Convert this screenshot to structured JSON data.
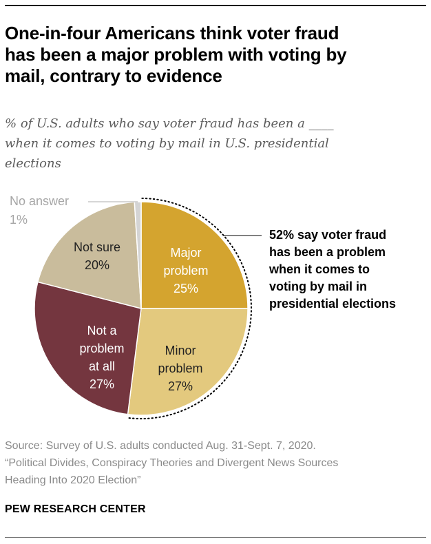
{
  "title": "One-in-four Americans think voter fraud\nhas been a major problem with voting by\nmail, contrary to evidence",
  "subtitle": "% of U.S. adults who say voter fraud has been a ____\nwhen it comes to voting by mail in U.S. presidential\nelections",
  "callout": "52% say voter fraud\nhas been a problem\nwhen it comes to\nvoting by mail in\npresidential elections",
  "source": "Source: Survey of U.S. adults conducted Aug. 31-Sept. 7, 2020.\n“Political Divides, Conspiracy Theories and Divergent News Sources\nHeading Into 2020 Election”",
  "brand": "PEW RESEARCH CENTER",
  "chart_data": {
    "type": "pie",
    "unit": "%",
    "slices": [
      {
        "label": "Major problem",
        "label_lines": [
          "Major",
          "problem",
          "25%"
        ],
        "value": 25,
        "color": "#d4a42f",
        "text_color": "#ffffff"
      },
      {
        "label": "Minor problem",
        "label_lines": [
          "Minor",
          "problem",
          "27%"
        ],
        "value": 27,
        "color": "#e3c97e",
        "text_color": "#222222"
      },
      {
        "label": "Not a problem at all",
        "label_lines": [
          "Not a",
          "problem",
          "at all",
          "27%"
        ],
        "value": 27,
        "color": "#74363f",
        "text_color": "#ffffff"
      },
      {
        "label": "Not sure",
        "label_lines": [
          "Not sure",
          "20%"
        ],
        "value": 20,
        "color": "#c9bc9c",
        "text_color": "#222222"
      },
      {
        "label": "No answer",
        "label_lines": [
          "No answer",
          "1%"
        ],
        "value": 1,
        "color": "#d4d4d4",
        "text_color": "#a6a6a6"
      }
    ],
    "bracket": {
      "covers": [
        "Major problem",
        "Minor problem"
      ],
      "total": 52
    }
  }
}
